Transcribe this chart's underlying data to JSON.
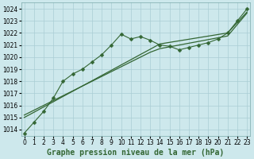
{
  "xlabel": "Graphe pression niveau de la mer (hPa)",
  "x_values": [
    0,
    1,
    2,
    3,
    4,
    5,
    6,
    7,
    8,
    9,
    10,
    11,
    12,
    13,
    14,
    15,
    16,
    17,
    18,
    19,
    20,
    21,
    22,
    23
  ],
  "line1": [
    1013.7,
    1014.6,
    1015.5,
    1016.6,
    1018.0,
    1018.6,
    1019.0,
    1019.6,
    1020.2,
    1021.0,
    1021.9,
    1021.5,
    1021.7,
    1021.4,
    1021.0,
    1020.9,
    1020.6,
    1020.8,
    1021.0,
    1021.2,
    1021.5,
    1022.0,
    1023.0,
    1024.0
  ],
  "line2": [
    1015.0,
    1015.43,
    1015.87,
    1016.3,
    1016.74,
    1017.17,
    1017.61,
    1018.04,
    1018.48,
    1018.91,
    1019.35,
    1019.78,
    1020.22,
    1020.65,
    1021.09,
    1021.22,
    1021.35,
    1021.48,
    1021.61,
    1021.74,
    1021.87,
    1022.0,
    1022.87,
    1023.74
  ],
  "line3": [
    1015.2,
    1015.6,
    1016.0,
    1016.4,
    1016.8,
    1017.2,
    1017.6,
    1018.0,
    1018.4,
    1018.8,
    1019.2,
    1019.6,
    1020.0,
    1020.4,
    1020.7,
    1020.85,
    1021.0,
    1021.15,
    1021.3,
    1021.45,
    1021.6,
    1021.75,
    1022.7,
    1023.65
  ],
  "bg_color": "#cde8ec",
  "grid_color": "#aacdd4",
  "line_color": "#336633",
  "marker": "D",
  "markersize": 2.5,
  "ylim": [
    1013.5,
    1024.5
  ],
  "yticks": [
    1014,
    1015,
    1016,
    1017,
    1018,
    1019,
    1020,
    1021,
    1022,
    1023,
    1024
  ],
  "xticks": [
    0,
    1,
    2,
    3,
    4,
    5,
    6,
    7,
    8,
    9,
    10,
    11,
    12,
    13,
    14,
    15,
    16,
    17,
    18,
    19,
    20,
    21,
    22,
    23
  ],
  "tick_fontsize": 5.5,
  "xlabel_fontsize": 7.0,
  "xlim": [
    -0.3,
    23.3
  ]
}
